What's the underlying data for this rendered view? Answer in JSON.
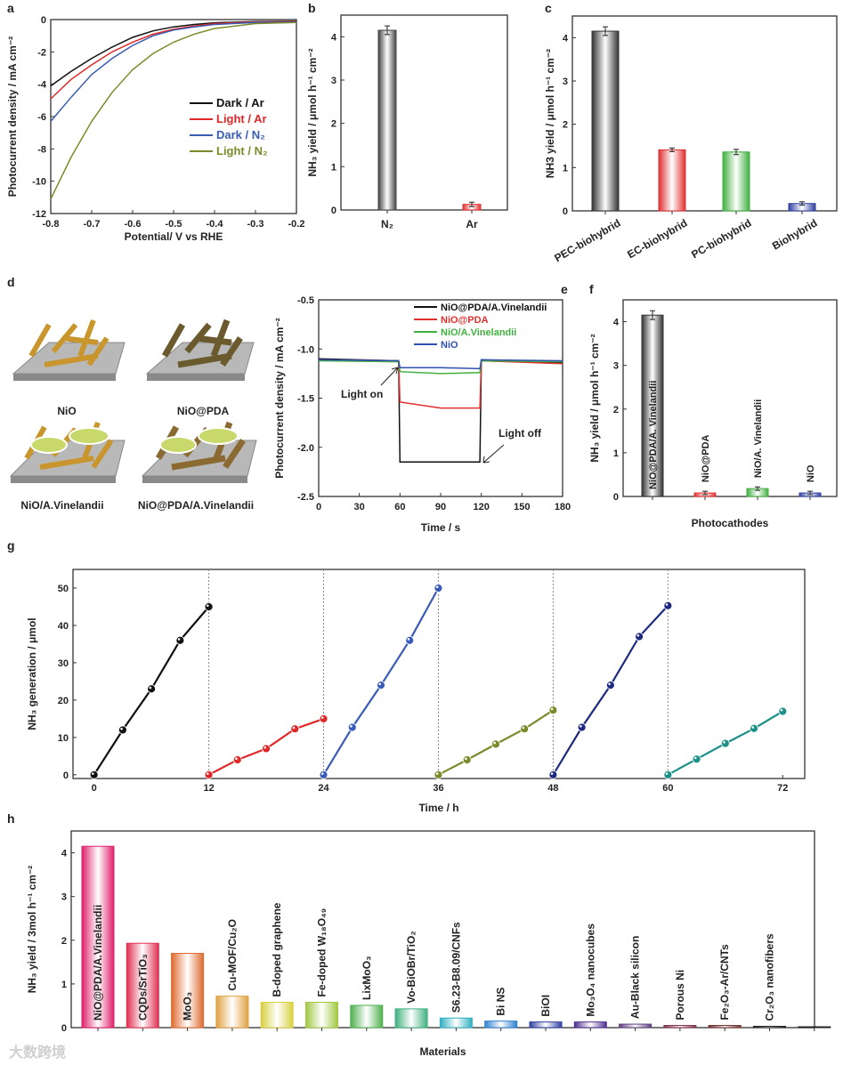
{
  "watermark": "大数跨境",
  "illustration_d": {
    "panel": "d",
    "labels": [
      "NiO",
      "NiO@PDA",
      "NiO/A.Vinelandii",
      "NiO@PDA/A.Vinelandii"
    ]
  },
  "chart_data": [
    {
      "panel": "a",
      "type": "line",
      "xlabel": "Potential/ V vs RHE",
      "ylabel": "Photocurrent density / mA cm⁻²",
      "xlim": [
        -0.8,
        -0.2
      ],
      "ylim": [
        -12,
        0
      ],
      "xticks": [
        -0.8,
        -0.7,
        -0.6,
        -0.5,
        -0.4,
        -0.3,
        -0.2
      ],
      "xtick_labels": [
        "-0.8",
        "-0.7",
        "-0.6",
        "-0.5",
        "-0.4",
        "-0.3",
        "-0.2"
      ],
      "yticks": [
        0,
        -2,
        -4,
        -6,
        -8,
        -10,
        -12
      ],
      "ytick_labels": [
        "0",
        "-2",
        "-4",
        "-6",
        "-8",
        "-10",
        "-12"
      ],
      "legend": "center-right",
      "x": [
        -0.8,
        -0.75,
        -0.7,
        -0.65,
        -0.6,
        -0.55,
        -0.5,
        -0.45,
        -0.4,
        -0.3,
        -0.2
      ],
      "series": [
        {
          "name": "Dark / Ar",
          "color": "#111111",
          "values": [
            -4.1,
            -3.2,
            -2.4,
            -1.7,
            -1.1,
            -0.7,
            -0.45,
            -0.3,
            -0.2,
            -0.12,
            -0.1
          ]
        },
        {
          "name": "Light / Ar",
          "color": "#e02828",
          "values": [
            -4.9,
            -3.7,
            -2.8,
            -2.0,
            -1.4,
            -0.9,
            -0.6,
            -0.4,
            -0.25,
            -0.15,
            -0.12
          ]
        },
        {
          "name": "Dark / N₂",
          "color": "#3a5cb0",
          "values": [
            -6.3,
            -4.8,
            -3.4,
            -2.4,
            -1.6,
            -1.0,
            -0.65,
            -0.45,
            -0.3,
            -0.18,
            -0.15
          ]
        },
        {
          "name": "Light / N₂",
          "color": "#7d8a2a",
          "values": [
            -11.1,
            -8.5,
            -6.3,
            -4.5,
            -3.1,
            -2.1,
            -1.4,
            -0.9,
            -0.55,
            -0.25,
            -0.18
          ]
        }
      ]
    },
    {
      "panel": "b",
      "type": "bar",
      "xlabel": "",
      "ylabel": "NH₃ yield / μmol h⁻¹ cm⁻²",
      "ylim": [
        0,
        4.5
      ],
      "yticks": [
        0,
        1,
        2,
        3,
        4
      ],
      "ytick_labels": [
        "0",
        "1",
        "2",
        "3",
        "4"
      ],
      "categories": [
        "N₂",
        "Ar"
      ],
      "values": [
        4.15,
        0.13
      ],
      "errors": [
        0.1,
        0.05
      ],
      "colors": [
        "#444444",
        "#e03030"
      ]
    },
    {
      "panel": "c",
      "type": "bar",
      "xlabel": "",
      "ylabel": "NH3 yield / μmol h⁻¹ cm⁻²",
      "ylim": [
        0,
        4.5
      ],
      "yticks": [
        0,
        1,
        2,
        3,
        4
      ],
      "ytick_labels": [
        "0",
        "1",
        "2",
        "3",
        "4"
      ],
      "categories": [
        "PEC-biohybrid",
        "EC-biohybrid",
        "PC-biohybrid",
        "Biohybrid"
      ],
      "values": [
        4.15,
        1.41,
        1.36,
        0.17
      ],
      "errors": [
        0.1,
        0.04,
        0.06,
        0.04
      ],
      "colors": [
        "#333333",
        "#e03030",
        "#40b040",
        "#3040a0"
      ]
    },
    {
      "panel": "e",
      "type": "line",
      "xlabel": "Time / s",
      "ylabel": "Photocurrent density / mA cm⁻²",
      "xlim": [
        0,
        180
      ],
      "ylim": [
        -2.5,
        -0.5
      ],
      "xticks": [
        0,
        30,
        60,
        90,
        120,
        150,
        180
      ],
      "xtick_labels": [
        "0",
        "30",
        "60",
        "90",
        "120",
        "150",
        "180"
      ],
      "yticks": [
        -0.5,
        -1.0,
        -1.5,
        -2.0,
        -2.5
      ],
      "ytick_labels": [
        "-0.5",
        "-1.0",
        "-1.5",
        "-2.0",
        "-2.5"
      ],
      "legend": "top-right",
      "annotations": [
        "Light on",
        "Light off"
      ],
      "series": [
        {
          "name": "NiO@PDA/A.Vinelandii",
          "color": "#111111",
          "points": [
            [
              0,
              -1.1
            ],
            [
              59,
              -1.12
            ],
            [
              60,
              -2.15
            ],
            [
              119,
              -2.15
            ],
            [
              120,
              -1.11
            ],
            [
              180,
              -1.14
            ]
          ]
        },
        {
          "name": "NiO@PDA",
          "color": "#e03030",
          "points": [
            [
              0,
              -1.11
            ],
            [
              59,
              -1.12
            ],
            [
              60,
              -1.54
            ],
            [
              90,
              -1.6
            ],
            [
              119,
              -1.6
            ],
            [
              120,
              -1.12
            ],
            [
              180,
              -1.15
            ]
          ]
        },
        {
          "name": "NiO/A.Vinelandii",
          "color": "#40b040",
          "points": [
            [
              0,
              -1.12
            ],
            [
              59,
              -1.13
            ],
            [
              60,
              -1.23
            ],
            [
              90,
              -1.25
            ],
            [
              119,
              -1.24
            ],
            [
              120,
              -1.12
            ],
            [
              180,
              -1.13
            ]
          ]
        },
        {
          "name": "NiO",
          "color": "#3050b0",
          "points": [
            [
              0,
              -1.11
            ],
            [
              59,
              -1.12
            ],
            [
              60,
              -1.19
            ],
            [
              90,
              -1.19
            ],
            [
              119,
              -1.2
            ],
            [
              120,
              -1.11
            ],
            [
              180,
              -1.12
            ]
          ]
        }
      ]
    },
    {
      "panel": "f",
      "type": "bar",
      "xlabel": "Photocathodes",
      "ylabel": "NH₃ yield / μmol h⁻¹ cm⁻²",
      "ylim": [
        0,
        4.5
      ],
      "yticks": [
        0,
        1,
        2,
        3,
        4
      ],
      "ytick_labels": [
        "0",
        "1",
        "2",
        "3",
        "4"
      ],
      "categories": [
        "NiO@PDA/A. Vinelandii",
        "NiO@PDA",
        "NiO/A. Vinelandii",
        "NiO"
      ],
      "values": [
        4.15,
        0.08,
        0.18,
        0.08
      ],
      "errors": [
        0.1,
        0.04,
        0.04,
        0.04
      ],
      "colors": [
        "#333333",
        "#e03030",
        "#40b040",
        "#3040a0"
      ]
    },
    {
      "panel": "g",
      "type": "line",
      "xlabel": "Time / h",
      "ylabel": "NH₃ generation / μmol",
      "xlim": [
        -2.2,
        74.3
      ],
      "ylim": [
        -1,
        55
      ],
      "xticks": [
        0,
        12,
        24,
        36,
        48,
        60,
        72
      ],
      "xtick_labels": [
        "0",
        "12",
        "24",
        "36",
        "48",
        "60",
        "72"
      ],
      "yticks": [
        0,
        10,
        20,
        30,
        40,
        50
      ],
      "ytick_labels": [
        "0",
        "10",
        "20",
        "30",
        "40",
        "50"
      ],
      "vlines": [
        12,
        24,
        36,
        48,
        60
      ],
      "series": [
        {
          "color": "#111111",
          "points": [
            [
              0,
              0
            ],
            [
              3,
              12
            ],
            [
              6,
              23
            ],
            [
              9,
              36
            ],
            [
              12,
              45
            ]
          ]
        },
        {
          "color": "#e02828",
          "points": [
            [
              12,
              0
            ],
            [
              15,
              4
            ],
            [
              18,
              7
            ],
            [
              21,
              12.3
            ],
            [
              24,
              15
            ]
          ]
        },
        {
          "color": "#3a5cb8",
          "points": [
            [
              24,
              0
            ],
            [
              27,
              12.7
            ],
            [
              30,
              24
            ],
            [
              33,
              36
            ],
            [
              36,
              50
            ]
          ]
        },
        {
          "color": "#7d8a2a",
          "points": [
            [
              36,
              0
            ],
            [
              39,
              4
            ],
            [
              42,
              8.2
            ],
            [
              45,
              12.3
            ],
            [
              48,
              17.3
            ]
          ]
        },
        {
          "color": "#1e2a80",
          "points": [
            [
              48,
              0
            ],
            [
              51,
              12.7
            ],
            [
              54,
              24
            ],
            [
              57,
              37
            ],
            [
              60,
              45.3
            ]
          ]
        },
        {
          "color": "#1a9088",
          "points": [
            [
              60,
              0
            ],
            [
              63,
              4.2
            ],
            [
              66,
              8.4
            ],
            [
              69,
              12.4
            ],
            [
              72,
              17
            ]
          ]
        }
      ]
    },
    {
      "panel": "h",
      "type": "bar",
      "xlabel": "Materials",
      "ylabel": "NH₃ yield / 3mol h⁻¹ cm⁻²",
      "ylim": [
        0,
        4.5
      ],
      "yticks": [
        0,
        1,
        2,
        3,
        4
      ],
      "ytick_labels": [
        "0",
        "1",
        "2",
        "3",
        "4"
      ],
      "categories": [
        "NiO@PDA/A.Vinelandii",
        "CQDs/SrTiO₃",
        "MoO₃",
        "Cu-MOF/Cu₂O",
        "B-doped graphene",
        "Fe-doped W₁₈O₄₉",
        "LixMoO₃",
        "Vo-BiOBr/TiO₂",
        "S6.23-B8.09/CNFs",
        "Bi NS",
        "BiOI",
        "Mo₃O₄ nanocubes",
        "Au-Black silicon",
        "Porous Ni",
        "Fe₂O₃-Ar/CNTs",
        "Cr₂O₃ nanofibers",
        ""
      ],
      "values": [
        4.15,
        1.93,
        1.7,
        0.72,
        0.58,
        0.58,
        0.51,
        0.43,
        0.22,
        0.15,
        0.13,
        0.13,
        0.08,
        0.05,
        0.05,
        0.03,
        0.02
      ],
      "colors": [
        "#e0206a",
        "#e03050",
        "#e06a30",
        "#e0a040",
        "#d8d040",
        "#a0c840",
        "#50b050",
        "#40b080",
        "#30b0c0",
        "#3080d0",
        "#3040a0",
        "#503090",
        "#604080",
        "#803050",
        "#703030",
        "#202020",
        "#202020"
      ]
    }
  ]
}
